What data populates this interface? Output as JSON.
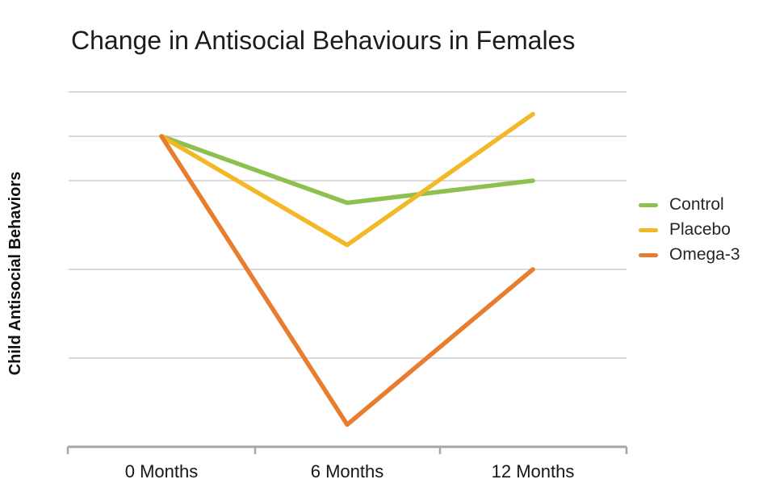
{
  "title": "Change in Antisocial Behaviours in Females",
  "y_axis_label": "Child Antisocial Behaviors",
  "colors": {
    "axis": "#a6a6a6",
    "gridline": "#d9d9d9",
    "title_text": "#1c1c1c",
    "label_text": "#161616",
    "control": "#8dc04f",
    "placebo": "#f2b827",
    "omega3": "#e87d30"
  },
  "chart_data": {
    "type": "line",
    "title": "Change in Antisocial Behaviours in Females",
    "xlabel": "",
    "ylabel": "Child Antisocial Behaviors",
    "categories": [
      "0 Months",
      "6 Months",
      "12 Months"
    ],
    "series": [
      {
        "name": "Control",
        "color": "#8dc04f",
        "values": [
          7.0,
          5.5,
          6.0
        ]
      },
      {
        "name": "Placebo",
        "color": "#f2b827",
        "values": [
          7.0,
          4.55,
          7.5
        ]
      },
      {
        "name": "Omega-3",
        "color": "#e87d30",
        "values": [
          7.0,
          0.5,
          4.0
        ]
      }
    ],
    "ylim": [
      0,
      8.5
    ],
    "y_tick_labels_visible": false,
    "gridline_values": [
      8,
      7,
      6,
      4,
      2
    ],
    "grid": true,
    "legend_position": "right",
    "notes": "y-axis has no numeric tick labels; values are relative units inferred from gridline spacing"
  }
}
